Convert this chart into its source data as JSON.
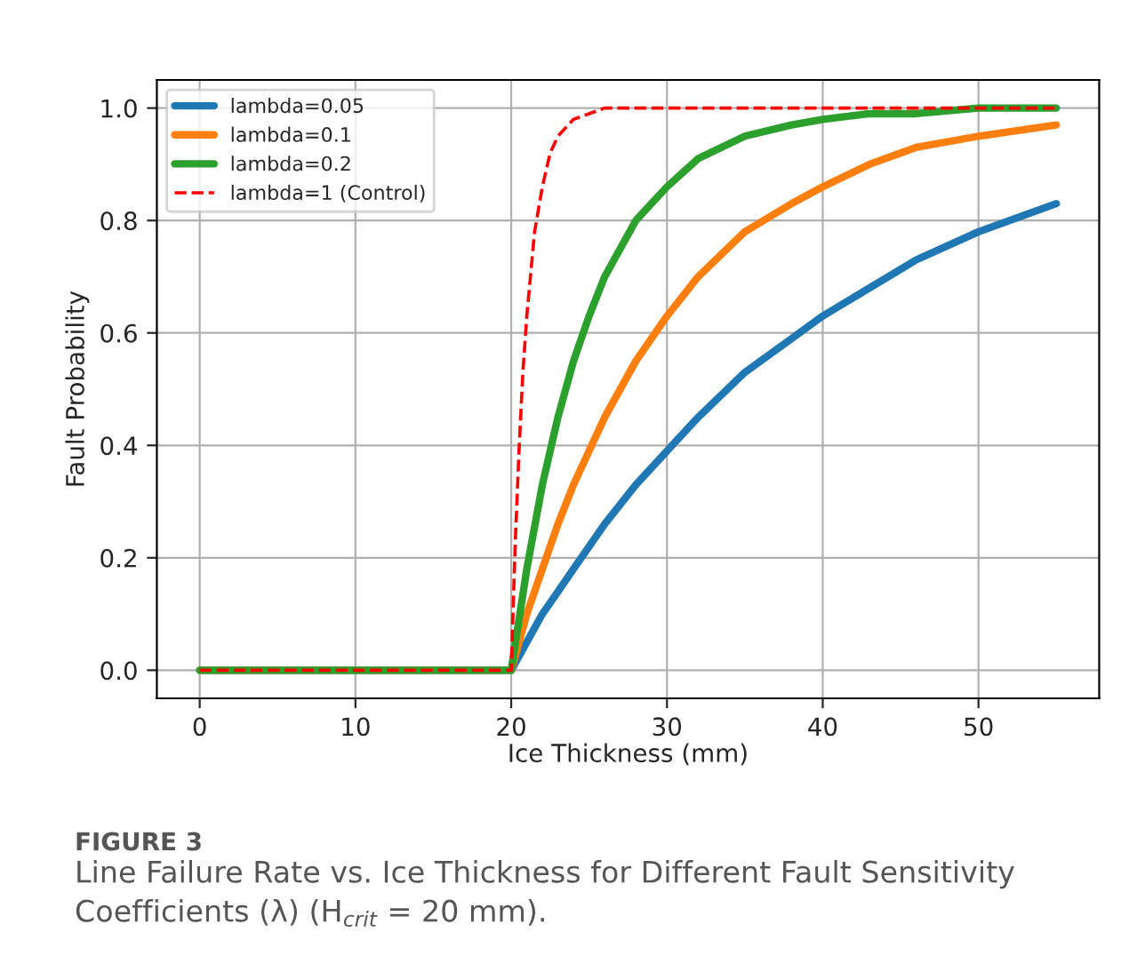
{
  "chart_data": {
    "type": "line",
    "xlabel": "Ice Thickness (mm)",
    "ylabel": "Fault Probability",
    "xlim": [
      -2.75,
      57.75
    ],
    "xticks": [
      0,
      10,
      20,
      30,
      40,
      50
    ],
    "ylim": [
      -0.05,
      1.05
    ],
    "yticks": [
      {
        "value": 0,
        "label": "0.0"
      },
      {
        "value": 0.2,
        "label": "0.2"
      },
      {
        "value": 0.4,
        "label": "0.4"
      },
      {
        "value": 0.6,
        "label": "0.6"
      },
      {
        "value": 0.8,
        "label": "0.8"
      },
      {
        "value": 1,
        "label": "1.0"
      }
    ],
    "grid": true,
    "legend": "top left",
    "marker": "none",
    "series": [
      {
        "name": "lambda=0.05",
        "color": "#1f77b4",
        "line_style": "solid",
        "x": [
          0,
          20,
          21,
          22,
          23,
          24,
          25,
          26,
          28,
          30,
          32,
          35,
          38,
          40,
          43,
          46,
          50,
          55
        ],
        "values": [
          0,
          0,
          0.05,
          0.1,
          0.14,
          0.18,
          0.22,
          0.26,
          0.33,
          0.39,
          0.45,
          0.53,
          0.59,
          0.63,
          0.68,
          0.73,
          0.78,
          0.83
        ]
      },
      {
        "name": "lambda=0.1",
        "color": "#ff7f0e",
        "line_style": "solid",
        "x": [
          0,
          20,
          21,
          22,
          23,
          24,
          25,
          26,
          28,
          30,
          32,
          35,
          38,
          40,
          43,
          46,
          50,
          55
        ],
        "values": [
          0,
          0,
          0.1,
          0.18,
          0.26,
          0.33,
          0.39,
          0.45,
          0.55,
          0.63,
          0.7,
          0.78,
          0.83,
          0.86,
          0.9,
          0.93,
          0.95,
          0.97
        ]
      },
      {
        "name": "lambda=0.2",
        "color": "#2ca02c",
        "line_style": "solid",
        "x": [
          0,
          20,
          21,
          22,
          23,
          24,
          25,
          26,
          28,
          30,
          32,
          35,
          38,
          40,
          43,
          46,
          50,
          55
        ],
        "values": [
          0,
          0,
          0.18,
          0.33,
          0.45,
          0.55,
          0.63,
          0.7,
          0.8,
          0.86,
          0.91,
          0.95,
          0.97,
          0.98,
          0.99,
          0.99,
          1.0,
          1.0
        ]
      },
      {
        "name": "lambda=1 (Control)",
        "color": "#ff0000",
        "line_style": "dashed",
        "x": [
          0,
          20,
          20.25,
          20.5,
          20.75,
          21,
          21.5,
          22,
          22.5,
          23,
          24,
          25,
          26,
          55
        ],
        "values": [
          0,
          0,
          0.22,
          0.39,
          0.53,
          0.63,
          0.78,
          0.86,
          0.92,
          0.95,
          0.98,
          0.99,
          1.0,
          1.0
        ]
      }
    ],
    "annotations": [
      "FIGURE 3",
      "Line Failure Rate vs. Ice Thickness for Different Fault Sensitivity",
      "Coefficients (λ) (H$_{crit}$ = 20 mm)."
    ]
  }
}
